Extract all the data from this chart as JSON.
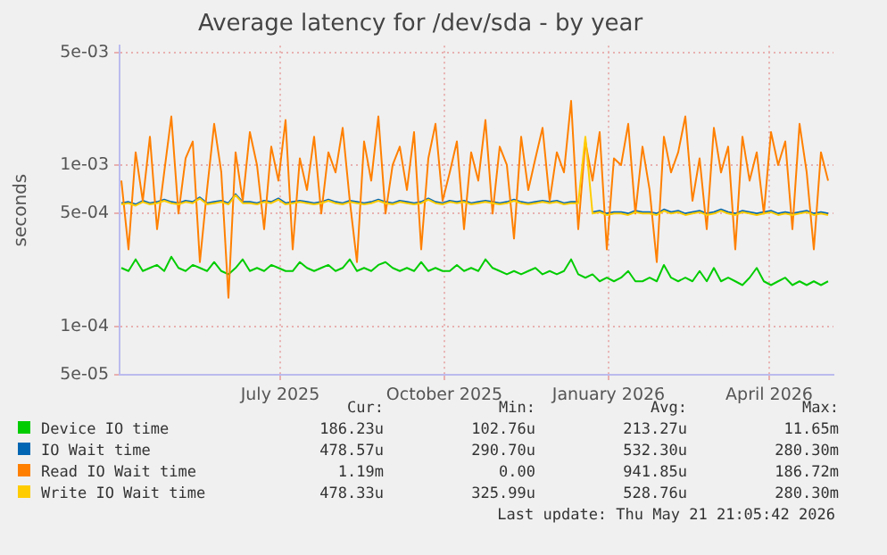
{
  "chart_data": {
    "type": "line",
    "title": "Average latency for /dev/sda - by year",
    "ylabel": "seconds",
    "log": "y",
    "grid": true,
    "legend": "bottom",
    "ylim": [
      5e-05,
      0.0055
    ],
    "yticks": [
      {
        "value": 5e-05,
        "label": "5e-05"
      },
      {
        "value": 0.0001,
        "label": "1e-04"
      },
      {
        "value": 0.0005,
        "label": "5e-04"
      },
      {
        "value": 0.001,
        "label": "1e-03"
      },
      {
        "value": 0.005,
        "label": "5e-03"
      }
    ],
    "xlim": [
      "2025-04-17",
      "2026-05-22"
    ],
    "xticks": [
      {
        "value": "2025-07-16",
        "label": "July 2025"
      },
      {
        "value": "2025-10-16",
        "label": "October 2025"
      },
      {
        "value": "2026-01-16",
        "label": "January 2026"
      },
      {
        "value": "2026-04-16",
        "label": "April 2026"
      }
    ],
    "x": [
      "2025-04-18",
      "2025-04-22",
      "2025-04-26",
      "2025-04-30",
      "2025-05-04",
      "2025-05-08",
      "2025-05-12",
      "2025-05-16",
      "2025-05-20",
      "2025-05-24",
      "2025-05-28",
      "2025-06-01",
      "2025-06-05",
      "2025-06-09",
      "2025-06-13",
      "2025-06-17",
      "2025-06-21",
      "2025-06-25",
      "2025-06-29",
      "2025-07-03",
      "2025-07-07",
      "2025-07-11",
      "2025-07-15",
      "2025-07-19",
      "2025-07-23",
      "2025-07-27",
      "2025-07-31",
      "2025-08-04",
      "2025-08-08",
      "2025-08-12",
      "2025-08-16",
      "2025-08-20",
      "2025-08-24",
      "2025-08-28",
      "2025-09-01",
      "2025-09-05",
      "2025-09-09",
      "2025-09-13",
      "2025-09-17",
      "2025-09-21",
      "2025-09-25",
      "2025-09-29",
      "2025-10-03",
      "2025-10-07",
      "2025-10-11",
      "2025-10-15",
      "2025-10-19",
      "2025-10-23",
      "2025-10-27",
      "2025-10-31",
      "2025-11-04",
      "2025-11-08",
      "2025-11-12",
      "2025-11-16",
      "2025-11-20",
      "2025-11-24",
      "2025-11-28",
      "2025-12-02",
      "2025-12-06",
      "2025-12-10",
      "2025-12-14",
      "2025-12-18",
      "2025-12-22",
      "2025-12-26",
      "2025-12-30",
      "2026-01-03",
      "2026-01-07",
      "2026-01-11",
      "2026-01-15",
      "2026-01-19",
      "2026-01-23",
      "2026-01-27",
      "2026-01-31",
      "2026-02-04",
      "2026-02-08",
      "2026-02-12",
      "2026-02-16",
      "2026-02-20",
      "2026-02-24",
      "2026-02-28",
      "2026-03-04",
      "2026-03-08",
      "2026-03-12",
      "2026-03-16",
      "2026-03-20",
      "2026-03-24",
      "2026-03-28",
      "2026-04-01",
      "2026-04-05",
      "2026-04-09",
      "2026-04-13",
      "2026-04-17",
      "2026-04-21",
      "2026-04-25",
      "2026-04-29",
      "2026-05-03",
      "2026-05-07",
      "2026-05-11",
      "2026-05-15",
      "2026-05-19"
    ],
    "series": [
      {
        "name": "Device IO time",
        "color": "#00cc00",
        "values": [
          0.00023,
          0.00022,
          0.00026,
          0.00022,
          0.00023,
          0.00024,
          0.00022,
          0.00027,
          0.00023,
          0.00022,
          0.00024,
          0.00023,
          0.00022,
          0.00025,
          0.00022,
          0.00021,
          0.00023,
          0.00026,
          0.00022,
          0.00023,
          0.00022,
          0.00024,
          0.00023,
          0.00022,
          0.00022,
          0.00025,
          0.00023,
          0.00022,
          0.00023,
          0.00024,
          0.00022,
          0.00023,
          0.00026,
          0.00022,
          0.00023,
          0.00022,
          0.00024,
          0.00025,
          0.00023,
          0.00022,
          0.00023,
          0.00022,
          0.00025,
          0.00022,
          0.00023,
          0.00022,
          0.00022,
          0.00024,
          0.00022,
          0.00023,
          0.00022,
          0.00026,
          0.00023,
          0.00022,
          0.00021,
          0.00022,
          0.00021,
          0.00022,
          0.00023,
          0.00021,
          0.00022,
          0.00021,
          0.00022,
          0.00026,
          0.00021,
          0.0002,
          0.00021,
          0.00019,
          0.0002,
          0.00019,
          0.0002,
          0.00022,
          0.00019,
          0.00019,
          0.0002,
          0.00019,
          0.00024,
          0.0002,
          0.00019,
          0.0002,
          0.00019,
          0.00022,
          0.00019,
          0.00023,
          0.00019,
          0.0002,
          0.00019,
          0.00018,
          0.0002,
          0.00023,
          0.00019,
          0.00018,
          0.00019,
          0.0002,
          0.00018,
          0.00019,
          0.00018,
          0.00019,
          0.00018,
          0.00019
        ]
      },
      {
        "name": "IO Wait time",
        "color": "#0066b3",
        "values": [
          0.00058,
          0.00059,
          0.00057,
          0.0006,
          0.00058,
          0.00059,
          0.00061,
          0.00059,
          0.00058,
          0.0006,
          0.00059,
          0.00063,
          0.00058,
          0.00059,
          0.0006,
          0.00058,
          0.00066,
          0.00059,
          0.00059,
          0.00058,
          0.0006,
          0.00059,
          0.00062,
          0.00058,
          0.00059,
          0.0006,
          0.00059,
          0.00058,
          0.00059,
          0.00061,
          0.00059,
          0.00058,
          0.0006,
          0.00059,
          0.00058,
          0.00059,
          0.00061,
          0.00059,
          0.00058,
          0.0006,
          0.00059,
          0.00058,
          0.00059,
          0.00062,
          0.00059,
          0.00058,
          0.0006,
          0.00059,
          0.0006,
          0.00058,
          0.00059,
          0.0006,
          0.00059,
          0.00058,
          0.00059,
          0.00061,
          0.00059,
          0.00058,
          0.00059,
          0.0006,
          0.00059,
          0.0006,
          0.00058,
          0.00059,
          0.00059,
          null,
          0.00051,
          0.00052,
          0.0005,
          0.00051,
          0.00051,
          0.0005,
          0.00052,
          0.00051,
          0.00051,
          0.0005,
          0.00053,
          0.00051,
          0.00052,
          0.0005,
          0.00051,
          0.00052,
          0.0005,
          0.00051,
          0.00053,
          0.00051,
          0.0005,
          0.00052,
          0.00051,
          0.0005,
          0.00051,
          0.00052,
          0.0005,
          0.00051,
          0.0005,
          0.00051,
          0.00052,
          0.0005,
          0.00051,
          0.0005
        ]
      },
      {
        "name": "Read IO Wait time",
        "color": "#ff8000",
        "values": [
          0.0008,
          0.0003,
          0.0012,
          0.0006,
          0.0015,
          0.0004,
          0.0009,
          0.002,
          0.0005,
          0.0011,
          0.0014,
          0.00025,
          0.0007,
          0.0018,
          0.0009,
          0.00015,
          0.0012,
          0.0006,
          0.0016,
          0.001,
          0.0004,
          0.0013,
          0.0008,
          0.0019,
          0.0003,
          0.0011,
          0.0007,
          0.0015,
          0.0005,
          0.0012,
          0.0009,
          0.0017,
          0.0006,
          0.00025,
          0.0014,
          0.0008,
          0.002,
          0.0005,
          0.001,
          0.0013,
          0.0007,
          0.0016,
          0.0003,
          0.0011,
          0.0018,
          0.0006,
          0.0009,
          0.0014,
          0.0004,
          0.0012,
          0.0008,
          0.0019,
          0.0005,
          0.0013,
          0.001,
          0.00035,
          0.0015,
          0.0007,
          0.0011,
          0.0017,
          0.0006,
          0.0012,
          0.0009,
          0.0025,
          0.0004,
          0.0014,
          0.0008,
          0.0016,
          0.0003,
          0.0011,
          0.001,
          0.0018,
          0.0005,
          0.0013,
          0.0007,
          0.00025,
          0.0015,
          0.0009,
          0.0012,
          0.002,
          0.0006,
          0.0011,
          0.0004,
          0.0017,
          0.0009,
          0.0013,
          0.0003,
          0.0015,
          0.0008,
          0.0012,
          0.0005,
          0.0016,
          0.001,
          0.0014,
          0.0004,
          0.0018,
          0.0009,
          0.0003,
          0.0012,
          0.0008
        ]
      },
      {
        "name": "Write IO Wait time",
        "color": "#ffcc00",
        "values": [
          0.00057,
          0.00058,
          0.00056,
          0.00059,
          0.00057,
          0.00058,
          0.0006,
          0.00058,
          0.00057,
          0.00059,
          0.00058,
          0.00062,
          0.00057,
          0.00058,
          0.00059,
          0.00057,
          0.00065,
          0.00058,
          0.00058,
          0.00057,
          0.00059,
          0.00058,
          0.00061,
          0.00057,
          0.00058,
          0.00059,
          0.00058,
          0.00057,
          0.00058,
          0.0006,
          0.00058,
          0.00057,
          0.00059,
          0.00058,
          0.00057,
          0.00058,
          0.0006,
          0.00058,
          0.00057,
          0.00059,
          0.00058,
          0.00057,
          0.00058,
          0.00061,
          0.00058,
          0.00057,
          0.00059,
          0.00058,
          0.00059,
          0.00057,
          0.00058,
          0.00059,
          0.00058,
          0.00057,
          0.00058,
          0.0006,
          0.00058,
          0.00057,
          0.00058,
          0.00059,
          0.00058,
          0.00059,
          0.00057,
          0.00058,
          0.00058,
          0.0015,
          0.0005,
          0.00051,
          0.00049,
          0.0005,
          0.0005,
          0.00049,
          0.00051,
          0.0005,
          0.0005,
          0.00049,
          0.00052,
          0.0005,
          0.00051,
          0.00049,
          0.0005,
          0.00051,
          0.00049,
          0.0005,
          0.00052,
          0.0005,
          0.00049,
          0.00051,
          0.0005,
          0.00049,
          0.0005,
          0.00051,
          0.00049,
          0.0005,
          0.00049,
          0.0005,
          0.00051,
          0.00049,
          0.0005,
          0.00049
        ]
      }
    ],
    "annotations": [
      "Cur:",
      "Min:",
      "Avg:",
      "Max:",
      "186.23u",
      "102.76u",
      "213.27u",
      "11.65m",
      "478.57u",
      "290.70u",
      "532.30u",
      "280.30m",
      "1.19m",
      "0.00",
      "941.85u",
      "186.72m",
      "478.33u",
      "325.99u",
      "528.76u",
      "280.30m",
      "Last update: Thu May 21 21:05:42 2026"
    ]
  }
}
